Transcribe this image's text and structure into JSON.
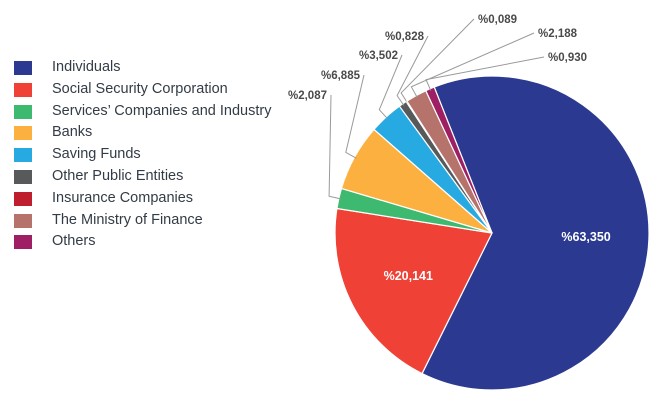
{
  "chart_data": {
    "type": "pie",
    "categories": [
      "Individuals",
      "Social Security Corporation",
      "Services’ Companies and Industry",
      "Banks",
      "Saving Funds",
      "Other Public Entities",
      "Insurance Companies",
      "The Ministry of Finance",
      "Others"
    ],
    "values": [
      63.35,
      20.141,
      2.087,
      6.885,
      3.502,
      0.828,
      0.089,
      2.188,
      0.93
    ],
    "value_labels": [
      "%63,350",
      "%20,141",
      "%2,087",
      "%6,885",
      "%3,502",
      "%0,828",
      "%0,089",
      "%2,188",
      "%0,930"
    ],
    "colors": [
      "#2b3990",
      "#ef4136",
      "#3dba6f",
      "#fbb040",
      "#27aae1",
      "#58595b",
      "#be1e2d",
      "#b5736b",
      "#9e1f63"
    ],
    "legend_position": "left"
  }
}
